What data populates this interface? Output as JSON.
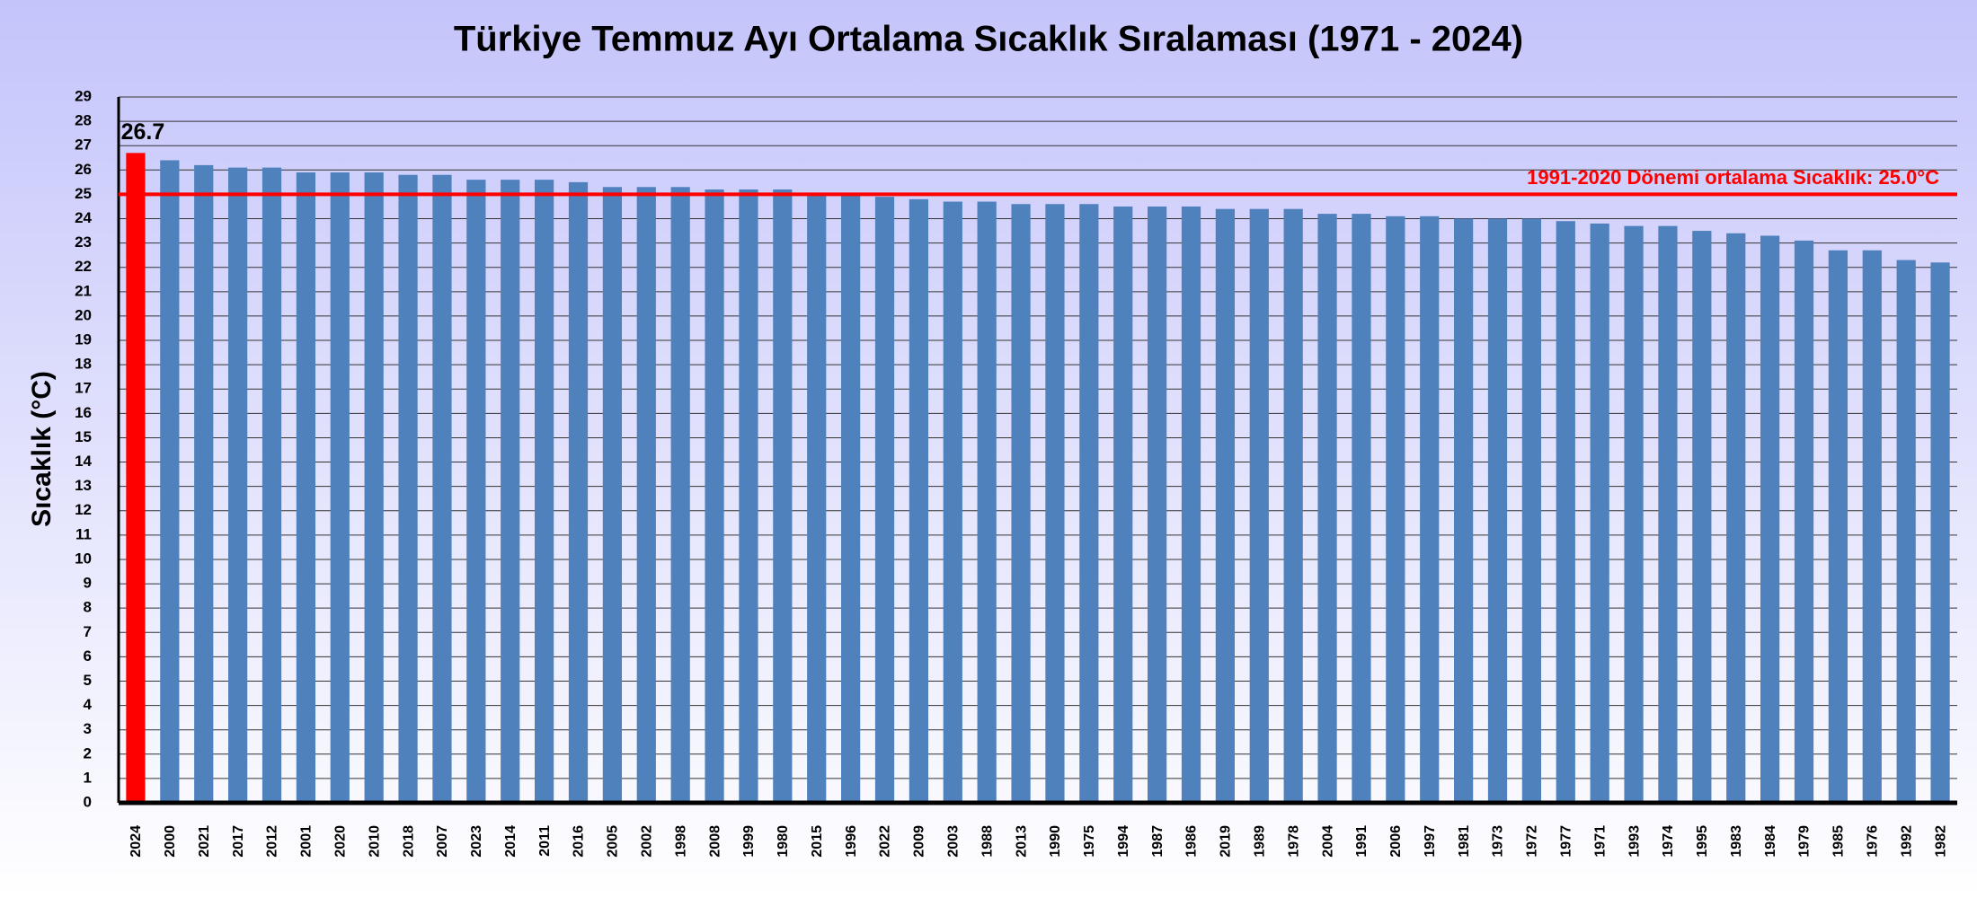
{
  "chart_data": {
    "type": "bar",
    "title": "Türkiye Temmuz Ayı Ortalama Sıcaklık Sıralaması (1971 - 2024)",
    "y_label": "Sıcaklık (°C)",
    "categories": [
      "2024",
      "2000",
      "2021",
      "2017",
      "2012",
      "2001",
      "2020",
      "2010",
      "2018",
      "2007",
      "2023",
      "2014",
      "2011",
      "2016",
      "2005",
      "2002",
      "1998",
      "2008",
      "1999",
      "1980",
      "2015",
      "1996",
      "2022",
      "2009",
      "2003",
      "1988",
      "2013",
      "1990",
      "1975",
      "1994",
      "1987",
      "1986",
      "2019",
      "1989",
      "1978",
      "2004",
      "1991",
      "2006",
      "1997",
      "1981",
      "1973",
      "1972",
      "1977",
      "1971",
      "1993",
      "1974",
      "1995",
      "1983",
      "1984",
      "1979",
      "1985",
      "1976",
      "1992",
      "1982"
    ],
    "values": [
      26.7,
      26.4,
      26.2,
      26.1,
      26.1,
      25.9,
      25.9,
      25.9,
      25.8,
      25.8,
      25.6,
      25.6,
      25.6,
      25.5,
      25.3,
      25.3,
      25.3,
      25.2,
      25.2,
      25.2,
      25.0,
      25.0,
      24.9,
      24.8,
      24.7,
      24.7,
      24.6,
      24.6,
      24.6,
      24.5,
      24.5,
      24.5,
      24.4,
      24.4,
      24.4,
      24.2,
      24.2,
      24.1,
      24.1,
      24.0,
      24.0,
      24.0,
      23.9,
      23.8,
      23.7,
      23.7,
      23.5,
      23.4,
      23.3,
      23.1,
      22.7,
      22.7,
      22.3,
      22.2
    ],
    "value_labels": [
      "26.7",
      null,
      null,
      null,
      null,
      null,
      null,
      null,
      null,
      null,
      null,
      null,
      null,
      null,
      null,
      null,
      null,
      null,
      null,
      null,
      null,
      null,
      null,
      null,
      null,
      null,
      null,
      null,
      null,
      null,
      null,
      null,
      null,
      null,
      null,
      null,
      null,
      null,
      null,
      null,
      null,
      null,
      null,
      null,
      null,
      null,
      null,
      null,
      null,
      null,
      null,
      null,
      null,
      null
    ],
    "colors": [
      "#ff0000",
      "#4f81bd",
      "#4f81bd",
      "#4f81bd",
      "#4f81bd",
      "#4f81bd",
      "#4f81bd",
      "#4f81bd",
      "#4f81bd",
      "#4f81bd",
      "#4f81bd",
      "#4f81bd",
      "#4f81bd",
      "#4f81bd",
      "#4f81bd",
      "#4f81bd",
      "#4f81bd",
      "#4f81bd",
      "#4f81bd",
      "#4f81bd",
      "#4f81bd",
      "#4f81bd",
      "#4f81bd",
      "#4f81bd",
      "#4f81bd",
      "#4f81bd",
      "#4f81bd",
      "#4f81bd",
      "#4f81bd",
      "#4f81bd",
      "#4f81bd",
      "#4f81bd",
      "#4f81bd",
      "#4f81bd",
      "#4f81bd",
      "#4f81bd",
      "#4f81bd",
      "#4f81bd",
      "#4f81bd",
      "#4f81bd",
      "#4f81bd",
      "#4f81bd",
      "#4f81bd",
      "#4f81bd",
      "#4f81bd",
      "#4f81bd",
      "#4f81bd",
      "#4f81bd",
      "#4f81bd",
      "#4f81bd",
      "#4f81bd",
      "#4f81bd",
      "#4f81bd",
      "#4f81bd"
    ],
    "reference_line": {
      "value": 25,
      "label": "1991-2020 Dönemi ortalama Sıcaklık: 25.0°C",
      "color": "#ff0000"
    },
    "ylim": [
      0,
      29
    ],
    "yticks": [
      0,
      1,
      2,
      3,
      4,
      5,
      6,
      7,
      8,
      9,
      10,
      11,
      12,
      13,
      14,
      15,
      16,
      17,
      18,
      19,
      20,
      21,
      22,
      23,
      24,
      25,
      26,
      27,
      28,
      29
    ],
    "grid": true
  }
}
